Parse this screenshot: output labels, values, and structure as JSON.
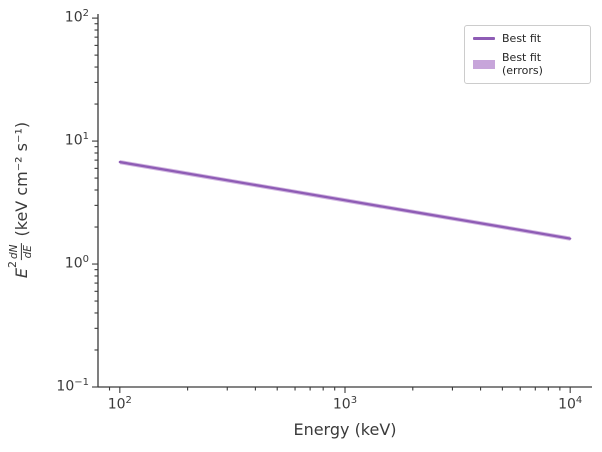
{
  "chart_data": {
    "type": "line",
    "title": "",
    "xlabel": "Energy (keV)",
    "ylabel": "E² dN/dE (keV cm⁻² s⁻¹)",
    "ylabel_parts": {
      "E": "E",
      "exp": "2",
      "num": "dN",
      "den": "dE",
      "units": "(keV cm⁻² s⁻¹)"
    },
    "x_scale": "log",
    "y_scale": "log",
    "xlim": [
      80,
      12500
    ],
    "ylim": [
      0.1,
      108
    ],
    "x_tick_exponents": [
      2,
      3,
      4
    ],
    "y_tick_exponents": [
      -1,
      0,
      1,
      2
    ],
    "grid": false,
    "background": "#ffffff",
    "legend_position": "upper right",
    "legend": {
      "items": [
        {
          "label": "Best fit",
          "swatch": "line"
        },
        {
          "label": "Best fit (errors)",
          "swatch": "patch"
        }
      ]
    },
    "colors": {
      "best_fit_line": "#8e5cb5",
      "error_band": "#c7a5da",
      "axis": "#3a3a3a"
    },
    "series": [
      {
        "name": "Best fit",
        "type": "line",
        "x": [
          100,
          178,
          316,
          562,
          1000,
          1778,
          3162,
          5623,
          10000
        ],
        "y": [
          6.75,
          5.64,
          4.72,
          3.95,
          3.3,
          2.76,
          2.31,
          1.93,
          1.61
        ]
      },
      {
        "name": "Best fit (errors)",
        "type": "band",
        "band_fraction": 0.04
      }
    ]
  }
}
